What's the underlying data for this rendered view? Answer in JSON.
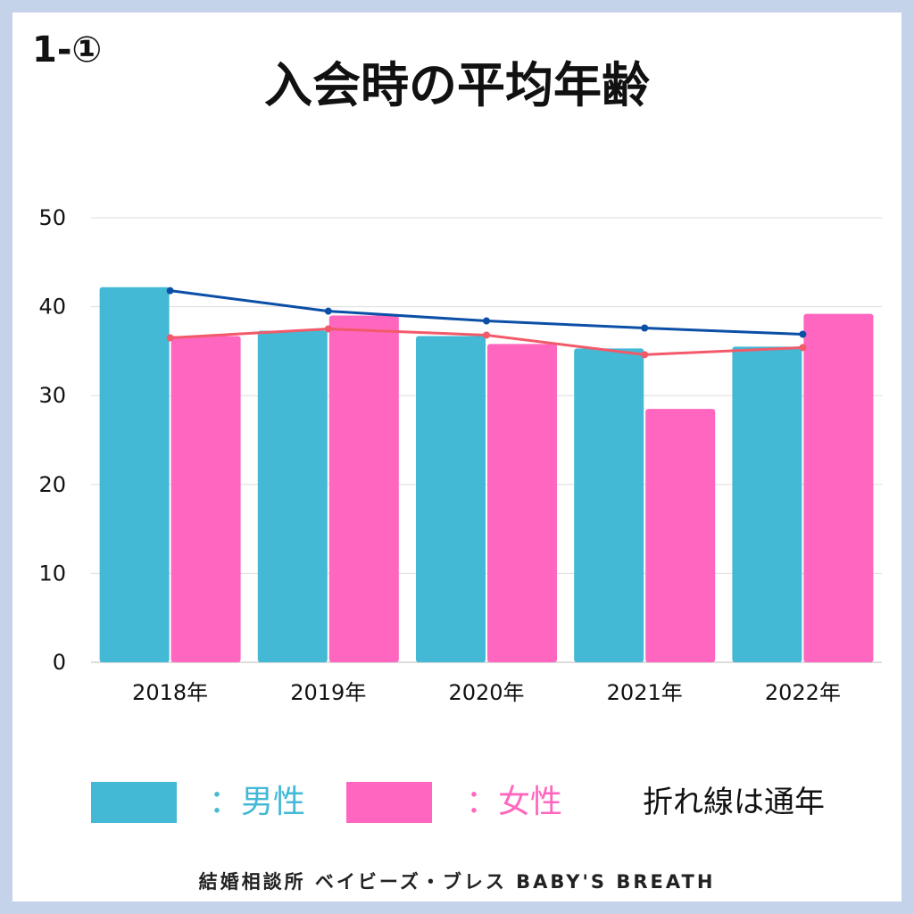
{
  "section_label": "1-①",
  "legend": {
    "male_label": "：男性",
    "female_label": "：女性",
    "note": "折れ線は通年"
  },
  "footer": "結婚相談所 ベイビーズ・ブレス BABY'S BREATH",
  "colors": {
    "male": "#43b9d5",
    "female": "#ff66bf",
    "overall_line": "#0b4fa6",
    "female_line": "#f25a6a",
    "gridline": "#dddddd",
    "text": "#111111",
    "frame": "#c5d3ea"
  },
  "chart_data": {
    "type": "bar",
    "title": "入会時の平均年齢",
    "categories": [
      "2018年",
      "2019年",
      "2020年",
      "2021年",
      "2022年"
    ],
    "series": [
      {
        "name": "男性",
        "kind": "bar",
        "values": [
          42.2,
          37.3,
          36.7,
          35.3,
          35.5
        ]
      },
      {
        "name": "女性",
        "kind": "bar",
        "values": [
          36.7,
          39.0,
          35.8,
          28.5,
          39.2
        ]
      },
      {
        "kind": "line",
        "values": [
          41.8,
          39.5,
          38.4,
          37.6,
          36.9
        ]
      },
      {
        "kind": "line",
        "values": [
          36.5,
          37.5,
          36.8,
          34.6,
          35.4
        ]
      }
    ],
    "yticks": [
      0,
      10,
      20,
      30,
      40,
      50
    ],
    "ylim": [
      0,
      50
    ],
    "grid": true,
    "xlabel": "",
    "ylabel": ""
  }
}
